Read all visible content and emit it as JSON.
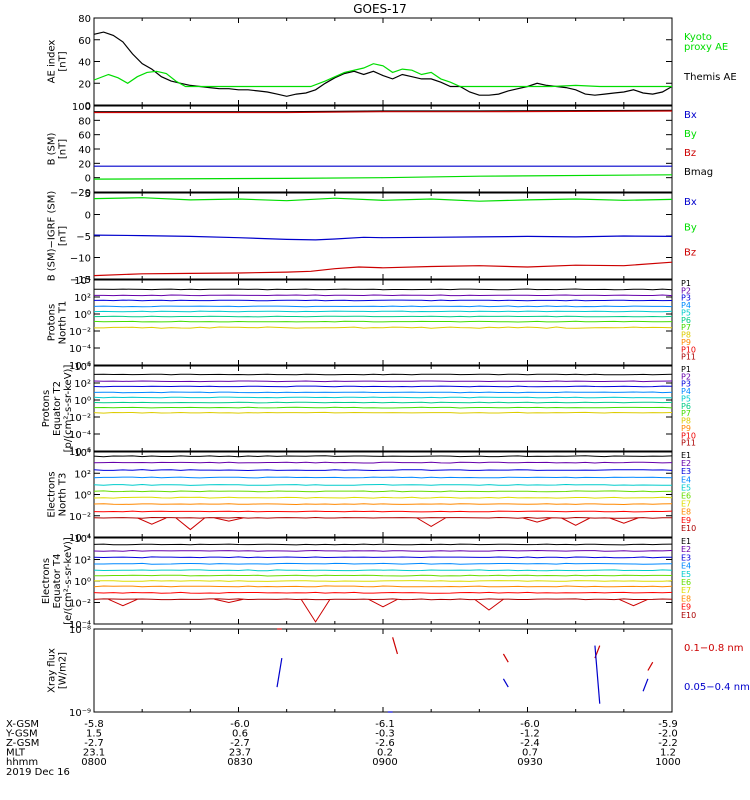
{
  "title": "GOES-17",
  "date_label": "2019 Dec 16",
  "orbit": {
    "rows": [
      {
        "label": "X-GSM",
        "values": [
          "-5.8",
          "-6.0",
          "-6.1",
          "-6.0",
          "-5.9"
        ]
      },
      {
        "label": "Y-GSM",
        "values": [
          "1.5",
          "0.6",
          "-0.3",
          "-1.2",
          "-2.0"
        ]
      },
      {
        "label": "Z-GSM",
        "values": [
          "-2.7",
          "-2.7",
          "-2.6",
          "-2.4",
          "-2.2"
        ]
      },
      {
        "label": "MLT",
        "values": [
          "23.1",
          "23.7",
          "0.2",
          "0.7",
          "1.2"
        ]
      },
      {
        "label": "hhmm",
        "values": [
          "0800",
          "0830",
          "0900",
          "0930",
          "1000"
        ]
      }
    ]
  },
  "colors": {
    "black": "#000000",
    "green": "#00dd00",
    "red": "#cc0000",
    "blue": "#0000cc",
    "proton_bands": [
      "#000000",
      "#6600aa",
      "#0000dd",
      "#0088ff",
      "#00cccc",
      "#00cc88",
      "#44dd00",
      "#ddcc00",
      "#ff8800",
      "#ee0000",
      "#aa0000"
    ],
    "electron_bands": [
      "#000000",
      "#6600aa",
      "#0000dd",
      "#0088ff",
      "#00cccc",
      "#66dd00",
      "#dddd00",
      "#ff8800",
      "#ff0000",
      "#aa0000"
    ]
  },
  "chart_data": [
    {
      "type": "line",
      "panel": "ae",
      "ylabel": [
        "AE index",
        "[nT]"
      ],
      "ylim": [
        0,
        80
      ],
      "yticks": [
        "0",
        "20",
        "40",
        "60",
        "80"
      ],
      "x_minutes": [
        0,
        120
      ],
      "legend": [
        {
          "text": "Kyoto",
          "color": "#00dd00"
        },
        {
          "text": "proxy AE",
          "color": "#00dd00"
        },
        {
          "text": "Themis AE",
          "color": "#000000"
        }
      ],
      "series": [
        {
          "name": "Themis AE",
          "color": "#000000",
          "x": [
            0,
            2,
            4,
            6,
            8,
            10,
            12,
            14,
            16,
            18,
            20,
            22,
            24,
            26,
            28,
            30,
            32,
            34,
            36,
            38,
            40,
            42,
            44,
            46,
            48,
            50,
            52,
            54,
            56,
            58,
            60,
            62,
            64,
            66,
            68,
            70,
            72,
            74,
            76,
            78,
            80,
            82,
            84,
            86,
            88,
            90,
            92,
            94,
            96,
            98,
            100,
            102,
            104,
            106,
            108,
            110,
            112,
            114,
            116,
            118,
            120
          ],
          "y": [
            65,
            67,
            64,
            58,
            47,
            38,
            33,
            26,
            22,
            20,
            18,
            17,
            16,
            15,
            15,
            14,
            14,
            13,
            12,
            10,
            8,
            10,
            11,
            14,
            20,
            25,
            29,
            31,
            28,
            31,
            27,
            24,
            28,
            26,
            24,
            24,
            21,
            17,
            17,
            12,
            9,
            9,
            10,
            13,
            15,
            17,
            20,
            18,
            17,
            16,
            14,
            10,
            9,
            10,
            11,
            12,
            14,
            11,
            10,
            12,
            17
          ]
        },
        {
          "name": "Kyoto proxy AE",
          "color": "#00dd00",
          "x": [
            0,
            3,
            5,
            7,
            9,
            11,
            13,
            15,
            17,
            19,
            21,
            23,
            25,
            27,
            30,
            35,
            40,
            45,
            48,
            52,
            56,
            58,
            60,
            62,
            64,
            66,
            68,
            70,
            72,
            74,
            76,
            78,
            80,
            85,
            90,
            95,
            100,
            105,
            110,
            115,
            120
          ],
          "y": [
            23,
            28,
            25,
            20,
            26,
            30,
            31,
            29,
            22,
            17,
            17,
            17,
            17,
            17,
            17,
            17,
            17,
            17,
            22,
            30,
            34,
            38,
            36,
            30,
            33,
            32,
            28,
            30,
            24,
            21,
            17,
            17,
            17,
            17,
            17,
            17,
            18,
            17,
            17,
            17,
            17
          ]
        }
      ]
    },
    {
      "type": "line",
      "panel": "bsm",
      "ylabel": [
        "B (SM)",
        "[nT]"
      ],
      "ylim": [
        -20,
        100
      ],
      "yticks": [
        "−20",
        "0",
        "20",
        "40",
        "60",
        "80",
        "100"
      ],
      "legend": [
        {
          "text": "Bx",
          "color": "#0000cc"
        },
        {
          "text": "By",
          "color": "#00dd00"
        },
        {
          "text": "Bz",
          "color": "#cc0000"
        },
        {
          "text": "Bmag",
          "color": "#000000"
        }
      ],
      "series": [
        {
          "name": "Bmag",
          "color": "#000000",
          "x": [
            0,
            40,
            60,
            80,
            120
          ],
          "y": [
            92,
            92,
            93,
            93,
            94
          ]
        },
        {
          "name": "Bz",
          "color": "#cc0000",
          "x": [
            0,
            40,
            60,
            80,
            120
          ],
          "y": [
            91,
            91,
            92,
            92,
            93
          ]
        },
        {
          "name": "Bx",
          "color": "#0000cc",
          "x": [
            0,
            40,
            60,
            80,
            120
          ],
          "y": [
            16,
            16,
            16,
            16,
            16
          ]
        },
        {
          "name": "By",
          "color": "#00dd00",
          "x": [
            0,
            40,
            60,
            80,
            120
          ],
          "y": [
            -2,
            -1,
            0,
            2,
            4
          ]
        }
      ]
    },
    {
      "type": "line",
      "panel": "bigrf",
      "ylabel": [
        "B (SM)−IGRF (SM)",
        "[nT]"
      ],
      "ylim": [
        -15,
        5
      ],
      "yticks": [
        "−15",
        "−10",
        "−5",
        "0",
        "5"
      ],
      "legend": [
        {
          "text": "Bx",
          "color": "#0000cc"
        },
        {
          "text": "By",
          "color": "#00dd00"
        },
        {
          "text": "Bz",
          "color": "#cc0000"
        }
      ],
      "series": [
        {
          "name": "By",
          "color": "#00dd00",
          "x": [
            0,
            10,
            20,
            30,
            40,
            50,
            60,
            70,
            80,
            90,
            100,
            110,
            120
          ],
          "y": [
            3.7,
            3.9,
            3.4,
            3.6,
            3.2,
            3.8,
            3.3,
            3.6,
            3.1,
            3.4,
            3.6,
            3.3,
            3.5
          ]
        },
        {
          "name": "Bx",
          "color": "#0000cc",
          "x": [
            0,
            10,
            20,
            30,
            40,
            46,
            50,
            56,
            60,
            70,
            80,
            90,
            100,
            110,
            120
          ],
          "y": [
            -4.8,
            -4.9,
            -5.1,
            -5.4,
            -5.8,
            -5.9,
            -5.7,
            -5.3,
            -5.4,
            -5.3,
            -5.2,
            -5.1,
            -5.2,
            -5.0,
            -5.1
          ]
        },
        {
          "name": "Bz",
          "color": "#cc0000",
          "x": [
            0,
            10,
            20,
            30,
            40,
            45,
            50,
            55,
            60,
            70,
            80,
            90,
            100,
            110,
            120
          ],
          "y": [
            -14.2,
            -13.8,
            -13.7,
            -13.6,
            -13.4,
            -13.2,
            -12.6,
            -12.2,
            -12.4,
            -12.1,
            -11.9,
            -12.2,
            -11.8,
            -11.9,
            -11.1
          ]
        }
      ]
    },
    {
      "type": "line",
      "panel": "protons_north",
      "ylabel": [
        "Protons",
        "North T1"
      ],
      "ylog": true,
      "ylim": [
        -6,
        4
      ],
      "ytick_exps": [
        -6,
        -4,
        -2,
        0,
        2,
        4
      ],
      "legend_labels": [
        "P1",
        "P2",
        "P3",
        "P4",
        "P5",
        "P6",
        "P7",
        "P8",
        "P9",
        "P10",
        "P11"
      ],
      "band_levels": [
        2.9,
        2.2,
        1.6,
        0.9,
        0.3,
        -0.3,
        -0.9,
        -1.6,
        -6.4,
        -6.4,
        -6.4
      ]
    },
    {
      "type": "line",
      "panel": "protons_equator",
      "ylabel": [
        "Protons",
        "Equator T2",
        "[p/(cm²-s-sr-keV)]"
      ],
      "ylog": true,
      "ylim": [
        -6,
        4
      ],
      "ytick_exps": [
        -6,
        -4,
        -2,
        0,
        2,
        4
      ],
      "legend_labels": [
        "P1",
        "P2",
        "P3",
        "P4",
        "P5",
        "P6",
        "P7",
        "P8",
        "P9",
        "P10",
        "P11"
      ],
      "band_levels": [
        3.0,
        2.2,
        1.6,
        0.9,
        0.3,
        -0.3,
        -0.9,
        -1.5,
        -6.4,
        -6.4,
        -6.4
      ]
    },
    {
      "type": "line",
      "panel": "electrons_north",
      "ylabel": [
        "Electrons",
        "North T3"
      ],
      "ylog": true,
      "ylim": [
        -4,
        4
      ],
      "ytick_exps": [
        -4,
        -2,
        0,
        2,
        4
      ],
      "legend_labels": [
        "E1",
        "E2",
        "E3",
        "E4",
        "E5",
        "E6",
        "E7",
        "E8",
        "E9",
        "E10"
      ],
      "band_levels": [
        3.6,
        3.0,
        2.3,
        1.6,
        0.9,
        0.3,
        -0.3,
        -0.9,
        -1.6,
        -2.2
      ]
    },
    {
      "type": "line",
      "panel": "electrons_equator",
      "ylabel": [
        "Electrons",
        "Equator T4",
        "[e/(cm²-s-sr-keV)]"
      ],
      "ylog": true,
      "ylim": [
        -4,
        4
      ],
      "ytick_exps": [
        -4,
        -2,
        0,
        2,
        4
      ],
      "legend_labels": [
        "E1",
        "E2",
        "E3",
        "E4",
        "E5",
        "E6",
        "E7",
        "E8",
        "E9",
        "E10"
      ],
      "band_levels": [
        3.4,
        2.8,
        2.2,
        1.6,
        1.0,
        0.5,
        0.0,
        -0.5,
        -1.1,
        -1.7
      ]
    },
    {
      "type": "line",
      "panel": "xray",
      "ylabel": [
        "Xray flux",
        "[W/m2]"
      ],
      "ylog": true,
      "ylim": [
        -9,
        -8
      ],
      "ytick_exps": [
        -9,
        -8
      ],
      "legend": [
        {
          "text": "0.1−0.8 nm",
          "color": "#cc0000"
        },
        {
          "text": "0.05−0.4 nm",
          "color": "#0000cc"
        }
      ]
    }
  ]
}
